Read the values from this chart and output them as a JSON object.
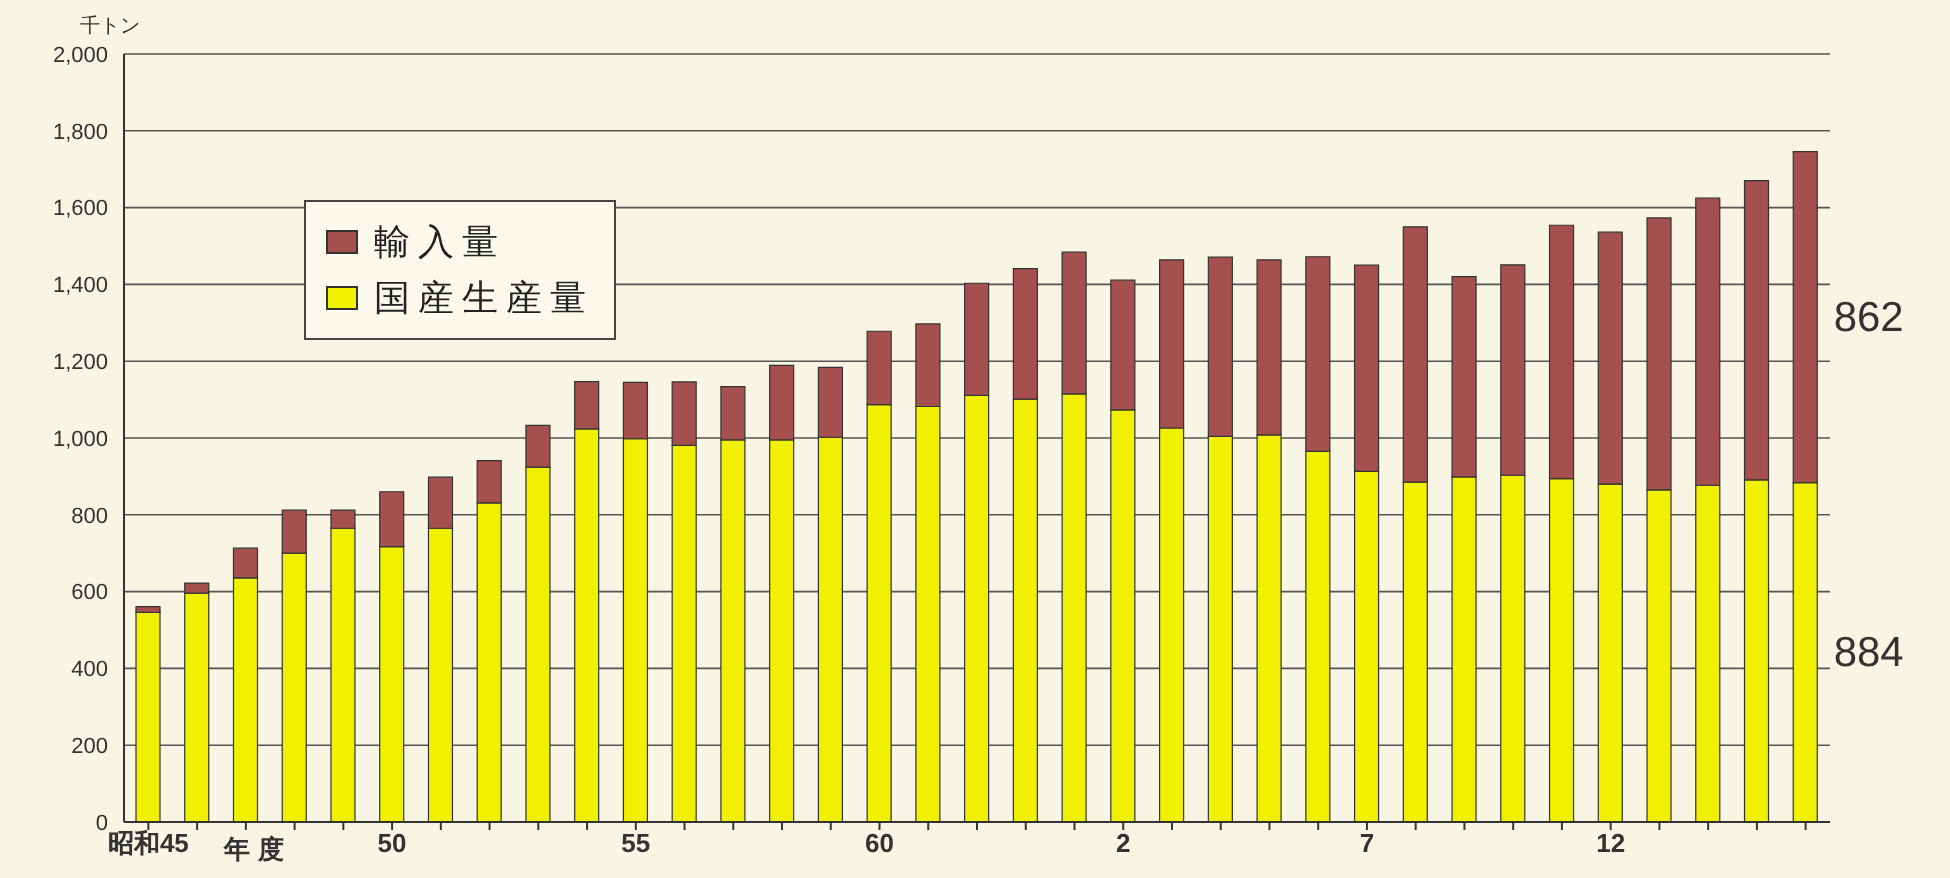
{
  "chart_data": {
    "type": "bar",
    "stacked": true,
    "ylabel": "千トン",
    "xlabel": "年度",
    "categories": [
      "昭和45",
      null,
      null,
      null,
      null,
      "50",
      null,
      null,
      null,
      null,
      "55",
      null,
      null,
      null,
      null,
      "60",
      null,
      null,
      null,
      null,
      "2",
      null,
      null,
      null,
      null,
      "7",
      null,
      null,
      null,
      null,
      "12",
      null,
      null,
      null,
      null
    ],
    "series": [
      {
        "name": "国産生産量",
        "color": "#f0f000",
        "values": [
          546,
          596,
          636,
          700,
          765,
          717,
          765,
          831,
          924,
          1024,
          998,
          981,
          995,
          995,
          1002,
          1087,
          1082,
          1111,
          1101,
          1115,
          1073,
          1026,
          1004,
          1008,
          965,
          913,
          885,
          899,
          903,
          894,
          880,
          865,
          877,
          891,
          884
        ]
      },
      {
        "name": "輸入量",
        "color": "#a5504f",
        "values": [
          15,
          26,
          77,
          112,
          47,
          143,
          133,
          110,
          109,
          123,
          147,
          165,
          139,
          194,
          182,
          191,
          215,
          292,
          340,
          369,
          338,
          438,
          467,
          456,
          507,
          537,
          665,
          521,
          548,
          660,
          656,
          708,
          748,
          779,
          862
        ]
      }
    ],
    "annotations": [
      "862",
      "884"
    ],
    "ylim": [
      0,
      2000
    ],
    "yticks": [
      0,
      {
        "value": 200,
        "label": "200"
      },
      {
        "value": 400,
        "label": "400"
      },
      {
        "value": 600,
        "label": "600"
      },
      {
        "value": 800,
        "label": "800"
      },
      {
        "value": 1000,
        "label": "1,000"
      },
      {
        "value": 1200,
        "label": "1,200"
      },
      {
        "value": 1400,
        "label": "1,400"
      },
      {
        "value": 1600,
        "label": "1,600"
      },
      {
        "value": 1800,
        "label": "1,800"
      },
      {
        "value": 2000,
        "label": "2,000"
      }
    ],
    "grid": "y",
    "legend": "top left"
  }
}
